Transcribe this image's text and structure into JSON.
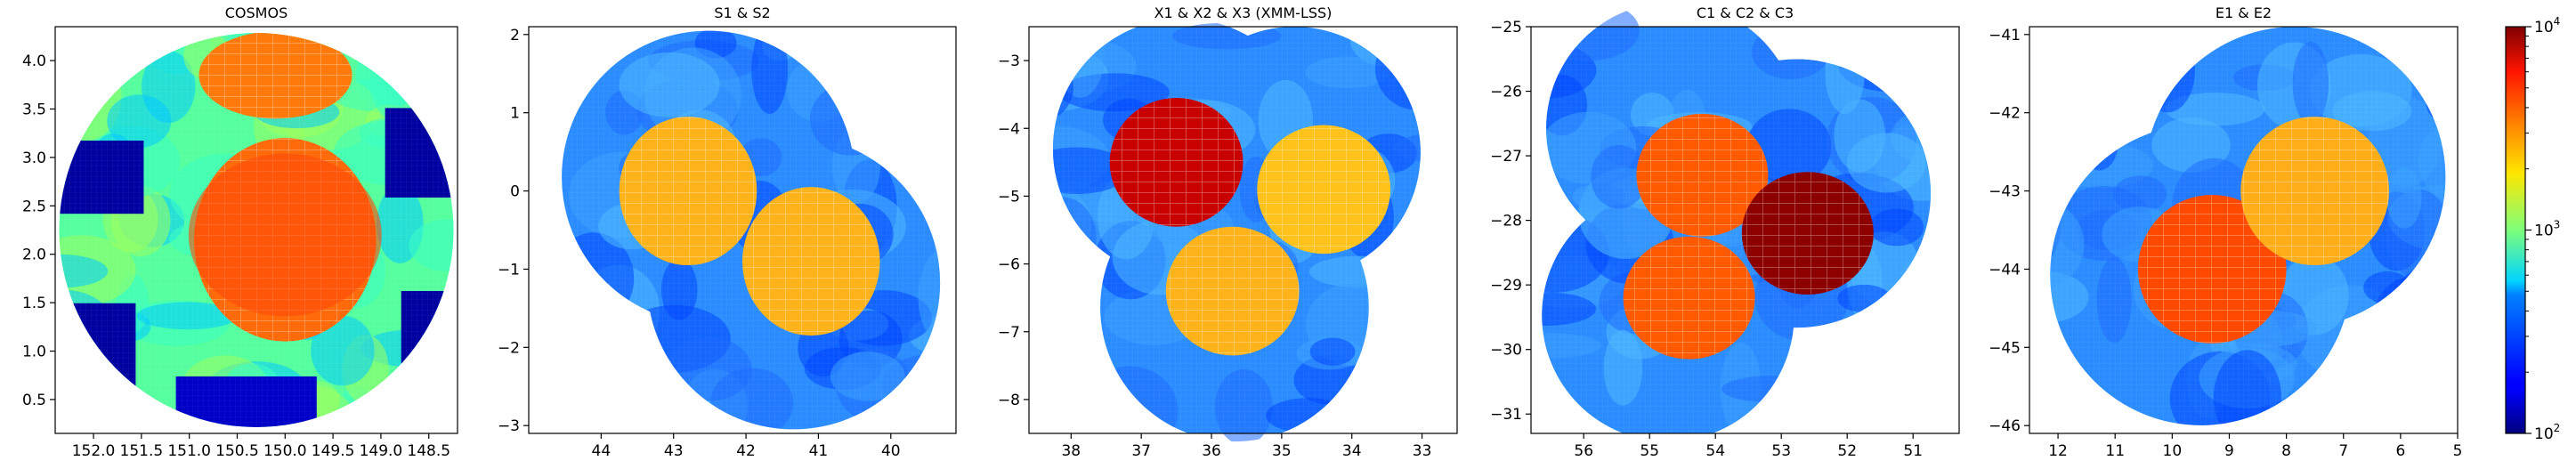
{
  "chart_data": [
    {
      "type": "heatmap",
      "title": "COSMOS",
      "xlabel": "",
      "ylabel": "",
      "xlim": [
        152.4,
        148.2
      ],
      "ylim": [
        0.15,
        4.35
      ],
      "xticks": [
        "152.0",
        "151.5",
        "151.0",
        "150.5",
        "150.0",
        "149.5",
        "149.0",
        "148.5"
      ],
      "xtick_values": [
        152.0,
        151.5,
        151.0,
        150.5,
        150.0,
        149.5,
        149.0,
        148.5
      ],
      "yticks": [
        "0.5",
        "1.0",
        "1.5",
        "2.0",
        "2.5",
        "3.0",
        "3.5",
        "4.0"
      ],
      "ytick_values": [
        0.5,
        1.0,
        1.5,
        2.0,
        2.5,
        3.0,
        3.5,
        4.0
      ],
      "field_centers": [
        [
          150.1,
          2.25
        ]
      ],
      "deep_regions": [
        [
          150.0,
          2.15,
          0.95,
          1.05
        ],
        [
          150.1,
          3.85,
          0.8,
          0.45
        ]
      ]
    },
    {
      "type": "heatmap",
      "title": "S1 & S2",
      "xlabel": "",
      "ylabel": "",
      "xlim": [
        45.0,
        39.1
      ],
      "ylim": [
        -3.1,
        2.1
      ],
      "xticks": [
        "44",
        "43",
        "42",
        "41",
        "40"
      ],
      "xtick_values": [
        44,
        43,
        42,
        41,
        40
      ],
      "yticks": [
        "−3",
        "−2",
        "−1",
        "0",
        "1",
        "2"
      ],
      "ytick_values": [
        -3,
        -2,
        -1,
        0,
        1,
        2
      ],
      "field_centers": [
        [
          42.8,
          0.0
        ],
        [
          41.1,
          -0.9
        ]
      ],
      "deep_regions": [
        [
          42.8,
          0.0,
          0.95,
          0.95
        ],
        [
          41.1,
          -0.9,
          0.95,
          0.95
        ]
      ]
    },
    {
      "type": "heatmap",
      "title": "X1 & X2 & X3 (XMM-LSS)",
      "xlabel": "",
      "ylabel": "",
      "xlim": [
        38.6,
        32.5
      ],
      "ylim": [
        -8.5,
        -2.5
      ],
      "xticks": [
        "38",
        "37",
        "36",
        "35",
        "34",
        "33"
      ],
      "xtick_values": [
        38,
        37,
        36,
        35,
        34,
        33
      ],
      "yticks": [
        "−8",
        "−7",
        "−6",
        "−5",
        "−4",
        "−3"
      ],
      "ytick_values": [
        -8,
        -7,
        -6,
        -5,
        -4,
        -3
      ],
      "field_centers": [
        [
          36.5,
          -4.5
        ],
        [
          34.4,
          -4.9
        ],
        [
          35.7,
          -6.4
        ]
      ],
      "deep_regions": [
        [
          36.5,
          -4.5,
          0.95,
          0.95
        ],
        [
          34.4,
          -4.9,
          0.95,
          0.95
        ],
        [
          35.7,
          -6.4,
          0.95,
          0.95
        ]
      ]
    },
    {
      "type": "heatmap",
      "title": "C1 & C2 & C3",
      "xlabel": "",
      "ylabel": "",
      "xlim": [
        56.8,
        50.3
      ],
      "ylim": [
        -31.3,
        -25.0
      ],
      "xticks": [
        "56",
        "55",
        "54",
        "53",
        "52",
        "51"
      ],
      "xtick_values": [
        56,
        55,
        54,
        53,
        52,
        51
      ],
      "yticks": [
        "−31",
        "−30",
        "−29",
        "−28",
        "−27",
        "−26",
        "−25"
      ],
      "ytick_values": [
        -31,
        -30,
        -29,
        -28,
        -27,
        -26,
        -25
      ],
      "field_centers": [
        [
          54.2,
          -27.3
        ],
        [
          52.6,
          -28.2
        ],
        [
          54.4,
          -29.2
        ]
      ],
      "deep_regions": [
        [
          54.2,
          -27.3,
          1.0,
          0.95
        ],
        [
          52.6,
          -28.2,
          1.0,
          0.95
        ],
        [
          54.4,
          -29.2,
          1.0,
          0.95
        ]
      ]
    },
    {
      "type": "heatmap",
      "title": "E1 & E2",
      "xlabel": "",
      "ylabel": "",
      "xlim": [
        12.5,
        5.0
      ],
      "ylim": [
        -46.1,
        -40.9
      ],
      "xticks": [
        "12",
        "11",
        "10",
        "9",
        "8",
        "7",
        "6",
        "5"
      ],
      "xtick_values": [
        12,
        11,
        10,
        9,
        8,
        7,
        6,
        5
      ],
      "yticks": [
        "−46",
        "−45",
        "−44",
        "−43",
        "−42",
        "−41"
      ],
      "ytick_values": [
        -46,
        -45,
        -44,
        -43,
        -42,
        -41
      ],
      "field_centers": [
        [
          9.3,
          -44.0
        ],
        [
          7.5,
          -43.0
        ]
      ],
      "deep_regions": [
        [
          9.3,
          -44.0,
          1.3,
          0.95
        ],
        [
          7.5,
          -43.0,
          1.3,
          0.95
        ]
      ]
    }
  ],
  "colorbar": {
    "scale": "log",
    "colormap": "jet",
    "range": [
      100,
      10000
    ],
    "ticks": [
      {
        "base": "10",
        "exp": "2",
        "value": 100
      },
      {
        "base": "10",
        "exp": "3",
        "value": 1000
      },
      {
        "base": "10",
        "exp": "4",
        "value": 10000
      }
    ]
  }
}
